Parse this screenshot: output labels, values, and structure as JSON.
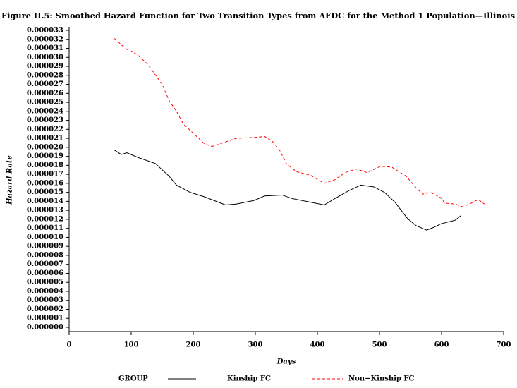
{
  "chart_data": {
    "type": "line",
    "title": "Figure II.5:  Smoothed Hazard Function for Two Transition Types from ΔFDC for the Method 1 Population—Illinois",
    "x_label": "Days",
    "y_label": "Hazard Rate",
    "legend_title": "GROUP",
    "xlim": [
      0,
      700
    ],
    "xticks": [
      0,
      100,
      200,
      300,
      400,
      500,
      600,
      700
    ],
    "ylim": [
      0,
      3.3e-05
    ],
    "yticks": [
      {
        "value": 0,
        "label": "0.000000"
      },
      {
        "value": 1e-06,
        "label": "0.000001"
      },
      {
        "value": 2e-06,
        "label": "0.000002"
      },
      {
        "value": 3e-06,
        "label": "0.000003"
      },
      {
        "value": 4e-06,
        "label": "0.000004"
      },
      {
        "value": 5e-06,
        "label": "0.000005"
      },
      {
        "value": 6e-06,
        "label": "0.000006"
      },
      {
        "value": 7e-06,
        "label": "0.000007"
      },
      {
        "value": 8e-06,
        "label": "0.000008"
      },
      {
        "value": 9e-06,
        "label": "0.000009"
      },
      {
        "value": 1e-05,
        "label": "0.000010"
      },
      {
        "value": 1.1e-05,
        "label": "0.000011"
      },
      {
        "value": 1.2e-05,
        "label": "0.000012"
      },
      {
        "value": 1.3e-05,
        "label": "0.000013"
      },
      {
        "value": 1.4e-05,
        "label": "0.000014"
      },
      {
        "value": 1.5e-05,
        "label": "0.000015"
      },
      {
        "value": 1.6e-05,
        "label": "0.000016"
      },
      {
        "value": 1.7e-05,
        "label": "0.000017"
      },
      {
        "value": 1.8e-05,
        "label": "0.000018"
      },
      {
        "value": 1.9e-05,
        "label": "0.000019"
      },
      {
        "value": 2e-05,
        "label": "0.000020"
      },
      {
        "value": 2.1e-05,
        "label": "0.000021"
      },
      {
        "value": 2.2e-05,
        "label": "0.000022"
      },
      {
        "value": 2.3e-05,
        "label": "0.000023"
      },
      {
        "value": 2.4e-05,
        "label": "0.000024"
      },
      {
        "value": 2.5e-05,
        "label": "0.000025"
      },
      {
        "value": 2.6e-05,
        "label": "0.000026"
      },
      {
        "value": 2.7e-05,
        "label": "0.000027"
      },
      {
        "value": 2.8e-05,
        "label": "0.000028"
      },
      {
        "value": 2.9e-05,
        "label": "0.000029"
      },
      {
        "value": 3e-05,
        "label": "0.000030"
      },
      {
        "value": 3.1e-05,
        "label": "0.000031"
      },
      {
        "value": 3.2e-05,
        "label": "0.000032"
      },
      {
        "value": 3.3e-05,
        "label": "0.000033"
      }
    ],
    "series": [
      {
        "name": "Kinship FC",
        "color": "#000000",
        "dash": false,
        "x": [
          73,
          84,
          93,
          110,
          139,
          161,
          173,
          195,
          218,
          252,
          269,
          298,
          315,
          343,
          360,
          389,
          411,
          428,
          451,
          470,
          491,
          508,
          525,
          545,
          559,
          576,
          587,
          599,
          622,
          631
        ],
        "values": [
          1.97e-05,
          1.92e-05,
          1.94e-05,
          1.89e-05,
          1.82e-05,
          1.68e-05,
          1.58e-05,
          1.5e-05,
          1.45e-05,
          1.36e-05,
          1.37e-05,
          1.41e-05,
          1.46e-05,
          1.47e-05,
          1.43e-05,
          1.39e-05,
          1.36e-05,
          1.43e-05,
          1.52e-05,
          1.58e-05,
          1.56e-05,
          1.5e-05,
          1.39e-05,
          1.21e-05,
          1.13e-05,
          1.08e-05,
          1.11e-05,
          1.15e-05,
          1.19e-05,
          1.24e-05
        ]
      },
      {
        "name": "Non−Kinship FC",
        "color": "#ff0000",
        "dash": true,
        "x": [
          73,
          84,
          93,
          110,
          127,
          150,
          161,
          173,
          184,
          201,
          218,
          230,
          252,
          269,
          298,
          315,
          327,
          339,
          350,
          366,
          389,
          411,
          428,
          445,
          463,
          480,
          502,
          520,
          543,
          559,
          570,
          582,
          599,
          605,
          622,
          634,
          645,
          659,
          669
        ],
        "values": [
          3.21e-05,
          3.14e-05,
          3.09e-05,
          3.03e-05,
          2.92e-05,
          2.7e-05,
          2.52e-05,
          2.4e-05,
          2.26e-05,
          2.15e-05,
          2.04e-05,
          2.01e-05,
          2.06e-05,
          2.1e-05,
          2.11e-05,
          2.12e-05,
          2.07e-05,
          1.97e-05,
          1.82e-05,
          1.73e-05,
          1.69e-05,
          1.6e-05,
          1.64e-05,
          1.72e-05,
          1.76e-05,
          1.72e-05,
          1.79e-05,
          1.78e-05,
          1.68e-05,
          1.55e-05,
          1.48e-05,
          1.5e-05,
          1.44e-05,
          1.38e-05,
          1.37e-05,
          1.34e-05,
          1.37e-05,
          1.42e-05,
          1.37e-05
        ]
      }
    ]
  }
}
